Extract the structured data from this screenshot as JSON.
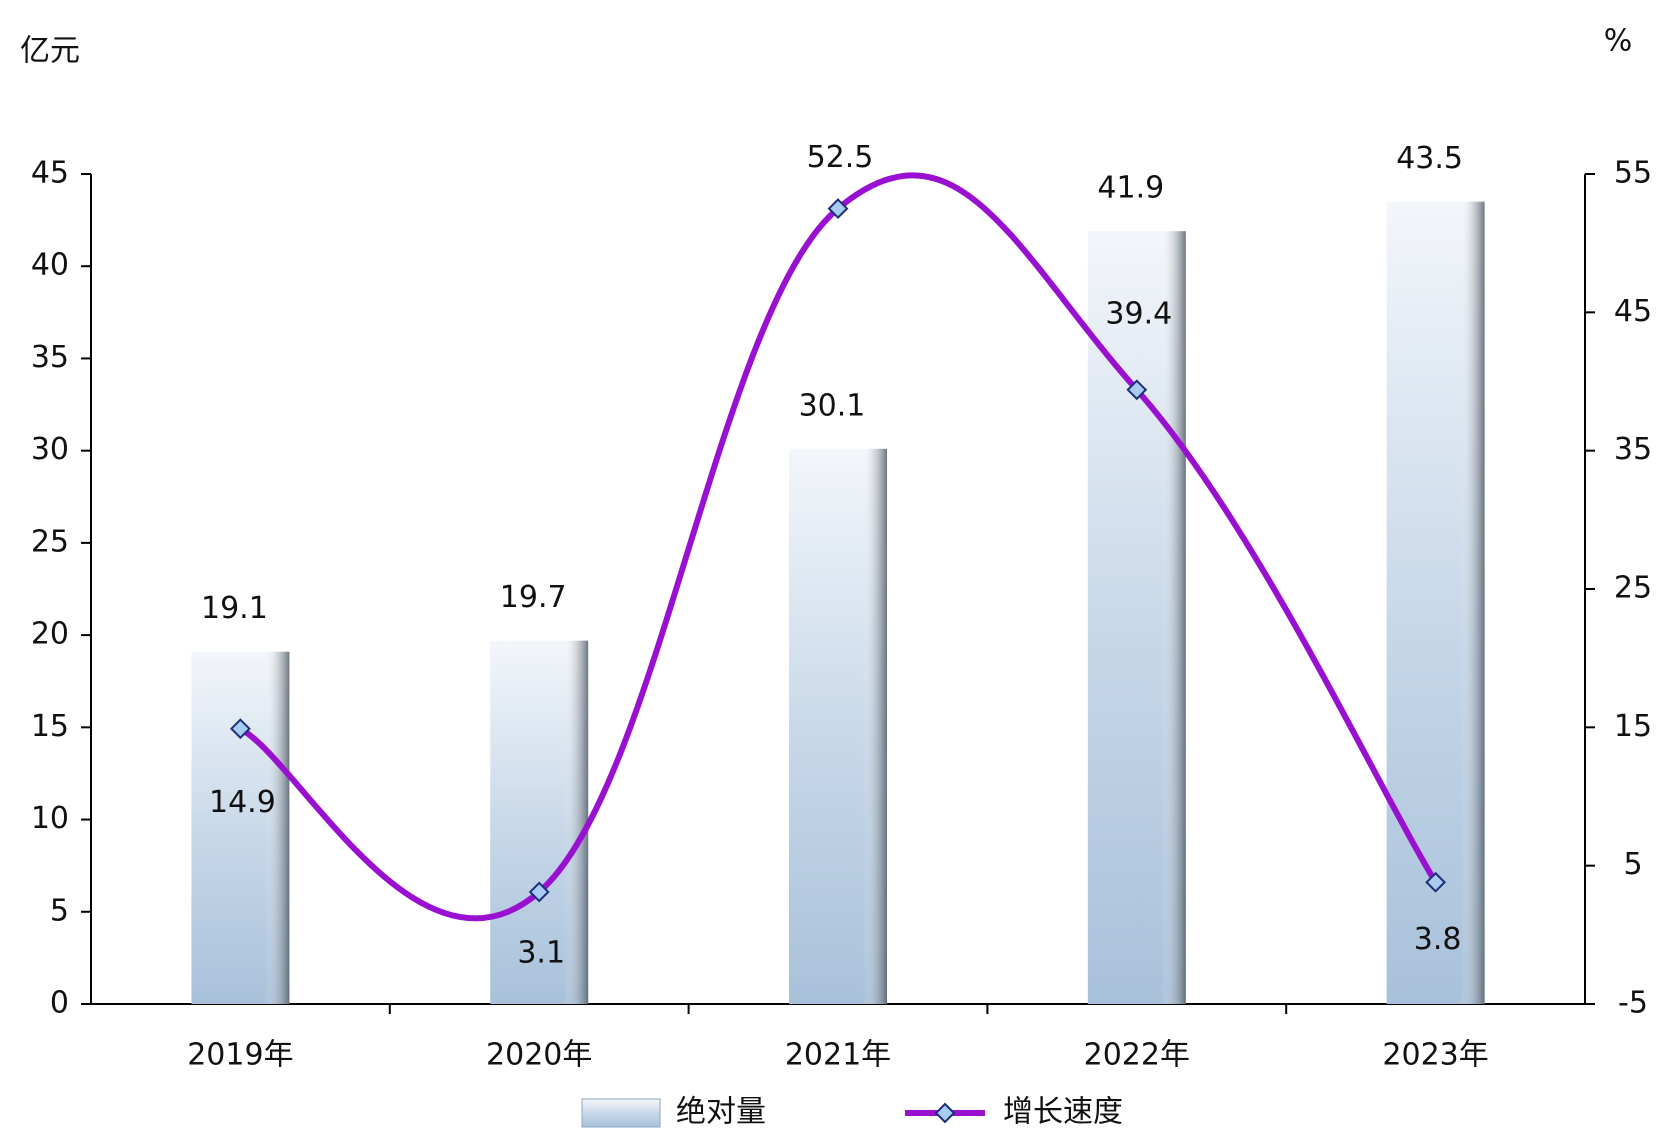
{
  "chart_data": {
    "type": "bar-line",
    "y_unit": "亿元",
    "y2_unit": "%",
    "categories": [
      "2019年",
      "2020年",
      "2021年",
      "2022年",
      "2023年"
    ],
    "series": [
      {
        "name": "绝对量",
        "type": "bar",
        "color": "#a9c2dc",
        "values": [
          19.1,
          19.7,
          30.1,
          41.9,
          43.5
        ]
      },
      {
        "name": "增长速度",
        "type": "line",
        "axis": "y2",
        "color": "#9a10d0",
        "marker_color": "#a8cbef",
        "values": [
          14.9,
          3.1,
          52.5,
          39.4,
          3.8
        ]
      }
    ],
    "ylim": [
      0,
      45
    ],
    "yticks": [
      0,
      5,
      10,
      15,
      20,
      25,
      30,
      35,
      40,
      45
    ],
    "y2lim": [
      -5,
      55
    ],
    "y2ticks": [
      -5,
      5,
      15,
      25,
      35,
      45,
      55
    ],
    "grid": false,
    "legend": "bottom"
  }
}
